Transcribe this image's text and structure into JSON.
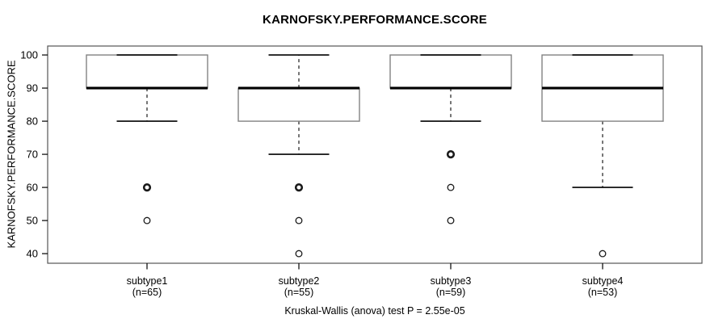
{
  "chart_data": {
    "type": "boxplot",
    "title": "KARNOFSKY.PERFORMANCE.SCORE",
    "ylabel": "KARNOFSKY.PERFORMANCE.SCORE",
    "xlabel": "",
    "caption": "Kruskal-Wallis (anova) test P = 2.55e-05",
    "ylim": [
      37.1,
      102.7
    ],
    "yticks": [
      40,
      50,
      60,
      70,
      80,
      90,
      100
    ],
    "grid": false,
    "legend": "none",
    "groups": [
      {
        "label": "subtype1",
        "sublabel": "(n=65)",
        "n": 65,
        "q1": 90,
        "median": 90,
        "q3": 100,
        "whisker_low": 80,
        "whisker_high": 100,
        "outliers": [
          {
            "value": 60,
            "bold": true
          },
          {
            "value": 50,
            "bold": false
          }
        ]
      },
      {
        "label": "subtype2",
        "sublabel": "(n=55)",
        "n": 55,
        "q1": 80,
        "median": 90,
        "q3": 90,
        "whisker_low": 70,
        "whisker_high": 100,
        "outliers": [
          {
            "value": 60,
            "bold": true
          },
          {
            "value": 50,
            "bold": false
          },
          {
            "value": 40,
            "bold": false
          }
        ]
      },
      {
        "label": "subtype3",
        "sublabel": "(n=59)",
        "n": 59,
        "q1": 90,
        "median": 90,
        "q3": 100,
        "whisker_low": 80,
        "whisker_high": 100,
        "outliers": [
          {
            "value": 70,
            "bold": true
          },
          {
            "value": 60,
            "bold": false
          },
          {
            "value": 50,
            "bold": false
          }
        ]
      },
      {
        "label": "subtype4",
        "sublabel": "(n=53)",
        "n": 53,
        "q1": 80,
        "median": 90,
        "q3": 100,
        "whisker_low": 60,
        "whisker_high": 100,
        "outliers": [
          {
            "value": 40,
            "bold": false
          }
        ]
      }
    ],
    "colors": {
      "background": "#ffffff",
      "plot_border": "#555555",
      "box_border": "#828282",
      "box_fill": "#ffffff",
      "median": "#000000",
      "whisker": "#1a1a1a",
      "outlier": "#1a1a1a",
      "text": "#000000"
    }
  }
}
